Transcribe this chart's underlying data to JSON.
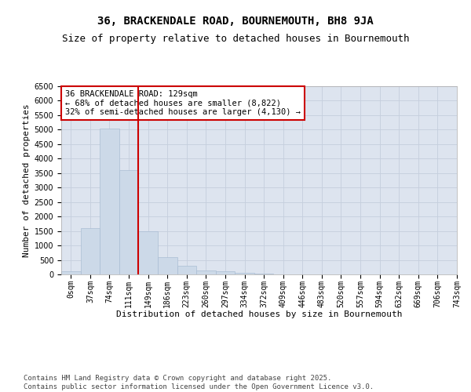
{
  "title_line1": "36, BRACKENDALE ROAD, BOURNEMOUTH, BH8 9JA",
  "title_line2": "Size of property relative to detached houses in Bournemouth",
  "xlabel": "Distribution of detached houses by size in Bournemouth",
  "ylabel": "Number of detached properties",
  "bar_color": "#ccd9e8",
  "bar_edgecolor": "#aabdd4",
  "grid_color": "#c5cedd",
  "background_color": "#dde4ef",
  "vline_color": "#cc0000",
  "vline_x": 3.5,
  "annotation_text": "36 BRACKENDALE ROAD: 129sqm\n← 68% of detached houses are smaller (8,822)\n32% of semi-detached houses are larger (4,130) →",
  "tick_labels": [
    "0sqm",
    "37sqm",
    "74sqm",
    "111sqm",
    "149sqm",
    "186sqm",
    "223sqm",
    "260sqm",
    "297sqm",
    "334sqm",
    "372sqm",
    "409sqm",
    "446sqm",
    "483sqm",
    "520sqm",
    "557sqm",
    "594sqm",
    "632sqm",
    "669sqm",
    "706sqm",
    "743sqm"
  ],
  "bar_heights": [
    100,
    1600,
    5050,
    3600,
    1480,
    590,
    300,
    130,
    100,
    50,
    30,
    10,
    5,
    2,
    1,
    0,
    0,
    0,
    0,
    0
  ],
  "ylim": [
    0,
    6500
  ],
  "yticks": [
    0,
    500,
    1000,
    1500,
    2000,
    2500,
    3000,
    3500,
    4000,
    4500,
    5000,
    5500,
    6000,
    6500
  ],
  "footer_text": "Contains HM Land Registry data © Crown copyright and database right 2025.\nContains public sector information licensed under the Open Government Licence v3.0.",
  "title_fontsize": 10,
  "subtitle_fontsize": 9,
  "axis_label_fontsize": 8,
  "tick_fontsize": 7,
  "annotation_fontsize": 7.5,
  "footer_fontsize": 6.5
}
